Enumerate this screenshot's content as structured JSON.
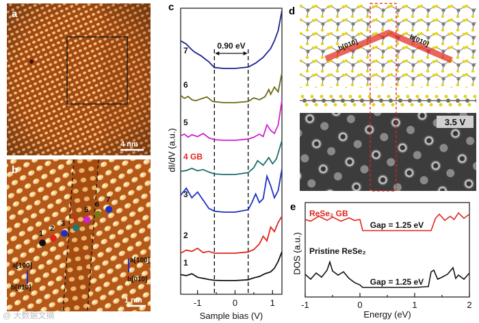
{
  "figure": {
    "watermark": "@ 大数据文摘"
  },
  "panel_a": {
    "label": "a",
    "scale_bar": "4 nm",
    "colors": {
      "bg": "#b5581c",
      "spot": "#f6c27a"
    }
  },
  "panel_b": {
    "label": "b",
    "scale_bar": "1 nm",
    "site_labels": [
      "1",
      "2",
      "3",
      "4",
      "5",
      "6",
      "7"
    ],
    "site_colors": [
      "#111111",
      "#e0241b",
      "#1b2fc4",
      "#1c7a75",
      "#d21fd6",
      "#7a7a14",
      "#1b2fc4"
    ],
    "axes_left": {
      "a": "a[100]",
      "b": "b[010]"
    },
    "axes_right": {
      "a": "a[100]",
      "b": "b[010]"
    }
  },
  "panel_c": {
    "label": "c",
    "gap_label": "0.90 eV",
    "xlabel": "Sample bias (V)",
    "ylabel": "dI/dV (a.u.)",
    "x_ticks": [
      "-1",
      "0",
      "1"
    ]
  },
  "panel_d": {
    "label": "d",
    "dir_left": "b[010]",
    "dir_right": "b[010]",
    "bias_label": "3.5 V"
  },
  "panel_e": {
    "label": "e",
    "xlabel": "Energy (eV)",
    "ylabel": "DOS (a.u.)",
    "x_ticks": [
      "-1",
      "0",
      "1",
      "2"
    ]
  },
  "chart_data": [
    {
      "type": "line",
      "panel": "c",
      "title": "",
      "xlabel": "Sample bias (V)",
      "ylabel": "dI/dV (a.u.)",
      "xlim": [
        -1.45,
        1.25
      ],
      "gap_markers_x": [
        -0.55,
        0.35
      ],
      "gap_value_eV": 0.9,
      "series": [
        {
          "name": "7",
          "color": "#1b1f8a",
          "label_color": "#111111",
          "x": [
            -1.45,
            -1.3,
            -1.2,
            -1.1,
            -0.9,
            -0.7,
            -0.55,
            -0.3,
            0.0,
            0.35,
            0.55,
            0.75,
            0.85,
            0.95,
            1.05,
            1.15,
            1.25
          ],
          "y": [
            0.62,
            0.55,
            0.46,
            0.38,
            0.28,
            0.15,
            0.02,
            0.0,
            0.0,
            0.03,
            0.12,
            0.25,
            0.35,
            0.45,
            0.62,
            0.85,
            1.3
          ]
        },
        {
          "name": "6",
          "color": "#6b6a14",
          "label_color": "#111111",
          "x": [
            -1.45,
            -1.35,
            -1.25,
            -1.15,
            -1.05,
            -0.9,
            -0.75,
            -0.6,
            -0.3,
            0.0,
            0.35,
            0.5,
            0.65,
            0.8,
            0.9,
            0.95,
            1.05,
            1.15,
            1.25
          ],
          "y": [
            0.3,
            0.18,
            0.26,
            0.12,
            0.08,
            0.16,
            0.24,
            0.05,
            0.0,
            0.0,
            0.05,
            0.2,
            0.12,
            0.25,
            0.55,
            0.35,
            0.65,
            0.45,
            1.25
          ]
        },
        {
          "name": "5",
          "color": "#d11fd0",
          "label_color": "#111111",
          "x": [
            -1.45,
            -1.35,
            -1.25,
            -1.15,
            -1.0,
            -0.85,
            -0.7,
            -0.55,
            -0.3,
            0.0,
            0.35,
            0.5,
            0.65,
            0.75,
            0.85,
            0.95,
            1.05,
            1.15,
            1.25
          ],
          "y": [
            0.15,
            0.2,
            0.1,
            0.18,
            0.12,
            0.22,
            0.08,
            0.02,
            0.0,
            0.0,
            0.04,
            0.1,
            0.2,
            0.12,
            0.5,
            0.32,
            0.22,
            0.5,
            1.3
          ]
        },
        {
          "name": "4 GB",
          "color": "#1c6d6b",
          "label_color": "#e0241b",
          "x": [
            -1.45,
            -1.3,
            -1.15,
            -1.0,
            -0.85,
            -0.7,
            -0.55,
            -0.3,
            0.0,
            0.35,
            0.5,
            0.6,
            0.75,
            0.9,
            1.0,
            1.1,
            1.2,
            1.25
          ],
          "y": [
            0.1,
            0.13,
            0.2,
            0.12,
            0.16,
            0.08,
            0.02,
            0.0,
            0.0,
            0.06,
            0.22,
            0.45,
            0.3,
            0.55,
            0.35,
            0.5,
            0.9,
            1.1
          ]
        },
        {
          "name": "3",
          "color": "#1b2fc4",
          "label_color": "#111111",
          "x": [
            -1.45,
            -1.3,
            -1.15,
            -1.0,
            -0.85,
            -0.7,
            -0.55,
            -0.3,
            0.0,
            0.35,
            0.45,
            0.55,
            0.65,
            0.75,
            0.85,
            0.95,
            1.05,
            1.15,
            1.25
          ],
          "y": [
            0.35,
            0.5,
            0.3,
            0.42,
            0.25,
            0.08,
            0.02,
            0.0,
            0.0,
            0.05,
            0.2,
            0.38,
            0.2,
            0.28,
            0.75,
            0.55,
            0.3,
            0.45,
            0.9
          ]
        },
        {
          "name": "2",
          "color": "#e0241b",
          "label_color": "#111111",
          "x": [
            -1.45,
            -1.3,
            -1.15,
            -1.0,
            -0.85,
            -0.7,
            -0.55,
            -0.3,
            0.0,
            0.35,
            0.5,
            0.65,
            0.75,
            0.85,
            0.95,
            1.05,
            1.15,
            1.25
          ],
          "y": [
            0.0,
            0.1,
            0.06,
            0.16,
            0.02,
            0.06,
            0.0,
            0.0,
            0.0,
            0.04,
            0.12,
            0.3,
            0.55,
            0.4,
            0.85,
            0.7,
            1.0,
            1.2
          ]
        },
        {
          "name": "1",
          "color": "#111111",
          "label_color": "#111111",
          "x": [
            -1.45,
            -1.3,
            -1.15,
            -1.0,
            -0.85,
            -0.7,
            -0.55,
            -0.3,
            0.0,
            0.35,
            0.5,
            0.65,
            0.8,
            0.95,
            1.05,
            1.15,
            1.25
          ],
          "y": [
            0.22,
            0.18,
            0.25,
            0.12,
            0.08,
            0.04,
            0.01,
            0.0,
            0.0,
            0.03,
            0.1,
            0.15,
            0.25,
            0.32,
            0.45,
            0.7,
            1.05
          ]
        }
      ]
    },
    {
      "type": "line",
      "panel": "e",
      "title": "",
      "xlabel": "Energy (eV)",
      "ylabel": "DOS (a.u.)",
      "xlim": [
        -1,
        2
      ],
      "series": [
        {
          "name": "ReSe₂ GB",
          "color": "#e0241b",
          "gap_label": "Gap = 1.25 eV",
          "gap_range": [
            0.05,
            1.3
          ],
          "x": [
            -1.0,
            -0.9,
            -0.75,
            -0.6,
            -0.5,
            -0.35,
            -0.2,
            -0.1,
            0.0,
            0.05,
            0.5,
            1.0,
            1.3,
            1.38,
            1.45,
            1.55,
            1.65,
            1.72,
            1.8,
            1.9,
            2.0
          ],
          "y": [
            0.82,
            0.78,
            0.9,
            0.8,
            0.88,
            0.78,
            0.86,
            0.8,
            0.82,
            0.55,
            0.55,
            0.55,
            0.55,
            0.85,
            0.95,
            0.8,
            0.9,
            0.82,
            0.98,
            0.85,
            0.95
          ]
        },
        {
          "name": "Pristine ReSe₂",
          "color": "#111111",
          "gap_label": "Gap = 1.25 eV",
          "gap_range": [
            0.05,
            1.3
          ],
          "x": [
            -1.0,
            -0.9,
            -0.8,
            -0.7,
            -0.6,
            -0.55,
            -0.5,
            -0.4,
            -0.3,
            -0.2,
            -0.1,
            0.0,
            0.05,
            0.5,
            1.0,
            1.25,
            1.3,
            1.35,
            1.42,
            1.5,
            1.6,
            1.7,
            1.75,
            1.8,
            1.9,
            2.0
          ],
          "y": [
            0.32,
            0.2,
            0.35,
            0.25,
            0.42,
            0.62,
            0.4,
            0.3,
            0.38,
            0.22,
            0.12,
            0.06,
            0.0,
            0.0,
            0.0,
            0.02,
            0.38,
            0.42,
            0.2,
            0.25,
            0.32,
            0.48,
            0.22,
            0.3,
            0.2,
            0.35
          ]
        }
      ]
    }
  ]
}
